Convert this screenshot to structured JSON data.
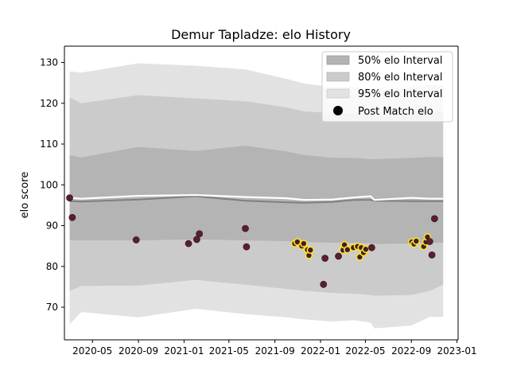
{
  "chart_data": {
    "type": "line",
    "title": "Demur Tapladze: elo History",
    "xlabel": "",
    "ylabel": "elo score",
    "xlim": [
      "2020-02-16",
      "2023-01-04"
    ],
    "ylim": [
      62,
      134
    ],
    "x_ticks": [
      "2020-05",
      "2020-09",
      "2021-01",
      "2021-05",
      "2021-09",
      "2022-01",
      "2022-05",
      "2022-09",
      "2023-01"
    ],
    "y_ticks": [
      70,
      80,
      90,
      100,
      110,
      120,
      130
    ],
    "grid": false,
    "legend_position": "top-right",
    "colors": {
      "band95": "#e2e2e2",
      "band80": "#cbcbcb",
      "band50": "#b4b4b4",
      "mean_line": "#ffffff",
      "median_line": "#808080",
      "marker_fill_old": "#5a1f2e",
      "marker_fill_new": "#4a1a2a",
      "marker_edge_recent": "#f5e52a",
      "marker_edge_old": "#3a1a22"
    },
    "legend": [
      {
        "label": "50% elo Interval",
        "kind": "band50"
      },
      {
        "label": "80% elo Interval",
        "kind": "band80"
      },
      {
        "label": "95% elo Interval",
        "kind": "band95"
      },
      {
        "label": "Post Match elo",
        "kind": "marker"
      }
    ],
    "bands": {
      "dates": [
        "2020-03-01",
        "2020-04-01",
        "2020-09-01",
        "2021-02-01",
        "2021-06-15",
        "2021-10-01",
        "2021-11-20",
        "2022-02-01",
        "2022-04-01",
        "2022-05-15",
        "2022-05-25",
        "2022-09-01",
        "2022-10-20",
        "2022-11-25"
      ],
      "p95_upper": [
        127.8,
        127.5,
        129.8,
        129.2,
        128.3,
        126.0,
        124.8,
        124.0,
        124.0,
        123.5,
        123.3,
        124.0,
        124.5,
        124.5
      ],
      "p80_upper": [
        121.4,
        120.0,
        122.0,
        121.2,
        120.5,
        119.0,
        118.0,
        117.6,
        117.6,
        117.3,
        117.2,
        117.8,
        118.0,
        118.0
      ],
      "p50_upper": [
        107.3,
        106.7,
        109.3,
        108.3,
        109.6,
        108.2,
        107.3,
        106.6,
        106.6,
        106.3,
        106.3,
        106.6,
        106.8,
        106.8
      ],
      "p50_lower": [
        86.4,
        86.4,
        86.4,
        86.6,
        86.4,
        86.2,
        86.0,
        85.8,
        85.8,
        85.6,
        85.5,
        85.6,
        85.8,
        85.8
      ],
      "p80_lower": [
        74.0,
        75.2,
        75.3,
        76.7,
        75.5,
        74.5,
        74.0,
        73.5,
        73.3,
        73.0,
        72.8,
        73.0,
        74.0,
        75.5
      ],
      "p95_lower": [
        65.8,
        68.8,
        67.5,
        69.6,
        68.3,
        67.5,
        67.0,
        66.5,
        66.8,
        66.2,
        64.8,
        65.5,
        67.6,
        67.6
      ],
      "mean": [
        96.8,
        96.6,
        97.3,
        97.5,
        97.0,
        96.7,
        96.3,
        96.4,
        96.9,
        97.2,
        96.3,
        96.8,
        96.6,
        96.6
      ],
      "median": [
        96.0,
        95.9,
        96.4,
        97.2,
        96.1,
        95.7,
        95.6,
        95.8,
        96.3,
        96.3,
        96.1,
        96.0,
        96.0,
        96.0
      ]
    },
    "points": [
      {
        "date": "2020-03-01",
        "elo": 96.8,
        "recent": false
      },
      {
        "date": "2020-03-08",
        "elo": 92.0,
        "recent": false
      },
      {
        "date": "2020-08-26",
        "elo": 86.5,
        "recent": false
      },
      {
        "date": "2021-01-13",
        "elo": 85.6,
        "recent": false
      },
      {
        "date": "2021-02-04",
        "elo": 86.6,
        "recent": false
      },
      {
        "date": "2021-02-11",
        "elo": 88.0,
        "recent": false
      },
      {
        "date": "2021-06-14",
        "elo": 89.3,
        "recent": false
      },
      {
        "date": "2021-06-17",
        "elo": 84.8,
        "recent": false
      },
      {
        "date": "2021-10-24",
        "elo": 85.6,
        "recent": true
      },
      {
        "date": "2021-10-31",
        "elo": 86.0,
        "recent": true
      },
      {
        "date": "2021-11-12",
        "elo": 85.0,
        "recent": true
      },
      {
        "date": "2021-11-17",
        "elo": 85.6,
        "recent": true
      },
      {
        "date": "2021-11-27",
        "elo": 84.1,
        "recent": true
      },
      {
        "date": "2021-12-01",
        "elo": 82.7,
        "recent": true
      },
      {
        "date": "2021-12-05",
        "elo": 84.0,
        "recent": true
      },
      {
        "date": "2022-01-09",
        "elo": 75.6,
        "recent": false
      },
      {
        "date": "2022-01-13",
        "elo": 82.0,
        "recent": false
      },
      {
        "date": "2022-02-18",
        "elo": 82.5,
        "recent": false
      },
      {
        "date": "2022-03-02",
        "elo": 84.0,
        "recent": true
      },
      {
        "date": "2022-03-06",
        "elo": 85.3,
        "recent": true
      },
      {
        "date": "2022-03-14",
        "elo": 84.1,
        "recent": true
      },
      {
        "date": "2022-03-30",
        "elo": 84.6,
        "recent": true
      },
      {
        "date": "2022-04-10",
        "elo": 84.9,
        "recent": true
      },
      {
        "date": "2022-04-16",
        "elo": 82.3,
        "recent": true
      },
      {
        "date": "2022-04-20",
        "elo": 84.6,
        "recent": true
      },
      {
        "date": "2022-04-26",
        "elo": 83.4,
        "recent": true
      },
      {
        "date": "2022-05-02",
        "elo": 84.2,
        "recent": true
      },
      {
        "date": "2022-05-18",
        "elo": 84.6,
        "recent": false
      },
      {
        "date": "2022-09-02",
        "elo": 86.0,
        "recent": true
      },
      {
        "date": "2022-09-08",
        "elo": 85.5,
        "recent": true
      },
      {
        "date": "2022-09-14",
        "elo": 86.2,
        "recent": true
      },
      {
        "date": "2022-10-04",
        "elo": 84.9,
        "recent": true
      },
      {
        "date": "2022-10-10",
        "elo": 86.0,
        "recent": true
      },
      {
        "date": "2022-10-14",
        "elo": 87.2,
        "recent": true
      },
      {
        "date": "2022-10-20",
        "elo": 86.1,
        "recent": false
      },
      {
        "date": "2022-10-26",
        "elo": 82.8,
        "recent": false
      },
      {
        "date": "2022-11-02",
        "elo": 91.7,
        "recent": false
      }
    ]
  }
}
